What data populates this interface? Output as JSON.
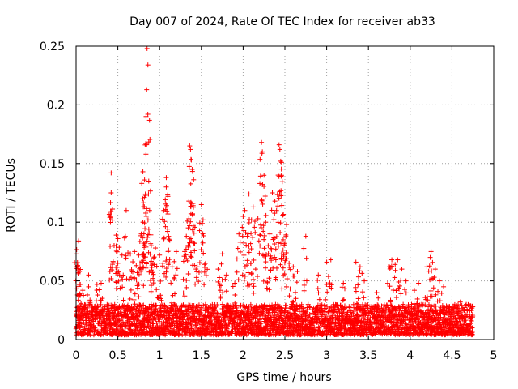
{
  "chart_data": {
    "type": "scatter",
    "title": "Day 007 of 2024, Rate Of TEC Index for receiver ab33",
    "xlabel": "GPS time / hours",
    "ylabel": "ROTI / TECUs",
    "xlim": [
      0,
      5
    ],
    "ylim": [
      0,
      0.25
    ],
    "x_ticks": [
      "0",
      "0.5",
      "1",
      "1.5",
      "2",
      "2.5",
      "3",
      "3.5",
      "4",
      "4.5",
      "5"
    ],
    "y_ticks": [
      "0",
      "0.05",
      "0.1",
      "0.15",
      "0.2",
      "0.25"
    ],
    "grid": true,
    "marker": "+",
    "series_color": "#ff0000",
    "baseline_band": {
      "x_range": [
        0.0,
        4.75
      ],
      "y_typical": [
        0.004,
        0.03
      ]
    },
    "series": [
      {
        "name": "ROTI",
        "points": [
          [
            0.0,
            0.073
          ],
          [
            0.02,
            0.062
          ],
          [
            0.03,
            0.084
          ],
          [
            0.04,
            0.058
          ],
          [
            0.05,
            0.047
          ],
          [
            0.08,
            0.042
          ],
          [
            0.15,
            0.055
          ],
          [
            0.25,
            0.047
          ],
          [
            0.3,
            0.048
          ],
          [
            0.42,
            0.142
          ],
          [
            0.42,
            0.125
          ],
          [
            0.42,
            0.109
          ],
          [
            0.48,
            0.089
          ],
          [
            0.5,
            0.086
          ],
          [
            0.5,
            0.065
          ],
          [
            0.55,
            0.072
          ],
          [
            0.6,
            0.11
          ],
          [
            0.65,
            0.073
          ],
          [
            0.7,
            0.075
          ],
          [
            0.72,
            0.063
          ],
          [
            0.75,
            0.072
          ],
          [
            0.78,
            0.09
          ],
          [
            0.8,
            0.1
          ],
          [
            0.8,
            0.12
          ],
          [
            0.8,
            0.143
          ],
          [
            0.82,
            0.136
          ],
          [
            0.83,
            0.124
          ],
          [
            0.84,
            0.105
          ],
          [
            0.85,
            0.248
          ],
          [
            0.86,
            0.234
          ],
          [
            0.87,
            0.135
          ],
          [
            0.88,
            0.11
          ],
          [
            0.9,
            0.08
          ],
          [
            0.92,
            0.065
          ],
          [
            0.95,
            0.078
          ],
          [
            1.0,
            0.072
          ],
          [
            1.05,
            0.11
          ],
          [
            1.08,
            0.138
          ],
          [
            1.08,
            0.13
          ],
          [
            1.1,
            0.107
          ],
          [
            1.1,
            0.122
          ],
          [
            1.15,
            0.062
          ],
          [
            1.2,
            0.075
          ],
          [
            1.3,
            0.075
          ],
          [
            1.32,
            0.088
          ],
          [
            1.35,
            0.118
          ],
          [
            1.36,
            0.165
          ],
          [
            1.37,
            0.162
          ],
          [
            1.38,
            0.153
          ],
          [
            1.39,
            0.145
          ],
          [
            1.4,
            0.116
          ],
          [
            1.42,
            0.082
          ],
          [
            1.45,
            0.062
          ],
          [
            1.5,
            0.115
          ],
          [
            1.52,
            0.102
          ],
          [
            1.55,
            0.065
          ],
          [
            1.7,
            0.06
          ],
          [
            1.75,
            0.073
          ],
          [
            1.8,
            0.055
          ],
          [
            1.9,
            0.048
          ],
          [
            1.95,
            0.09
          ],
          [
            2.0,
            0.105
          ],
          [
            2.02,
            0.11
          ],
          [
            2.05,
            0.088
          ],
          [
            2.07,
            0.124
          ],
          [
            2.1,
            0.102
          ],
          [
            2.12,
            0.113
          ],
          [
            2.15,
            0.06
          ],
          [
            2.2,
            0.133
          ],
          [
            2.22,
            0.168
          ],
          [
            2.23,
            0.16
          ],
          [
            2.25,
            0.14
          ],
          [
            2.27,
            0.1
          ],
          [
            2.3,
            0.08
          ],
          [
            2.32,
            0.09
          ],
          [
            2.35,
            0.125
          ],
          [
            2.38,
            0.118
          ],
          [
            2.4,
            0.11
          ],
          [
            2.43,
            0.166
          ],
          [
            2.44,
            0.162
          ],
          [
            2.45,
            0.152
          ],
          [
            2.46,
            0.14
          ],
          [
            2.48,
            0.085
          ],
          [
            2.5,
            0.082
          ],
          [
            2.52,
            0.098
          ],
          [
            2.55,
            0.065
          ],
          [
            2.6,
            0.062
          ],
          [
            2.65,
            0.058
          ],
          [
            2.75,
            0.088
          ],
          [
            2.9,
            0.055
          ],
          [
            3.0,
            0.066
          ],
          [
            3.05,
            0.068
          ],
          [
            3.2,
            0.048
          ],
          [
            3.35,
            0.066
          ],
          [
            3.4,
            0.062
          ],
          [
            3.45,
            0.05
          ],
          [
            3.6,
            0.04
          ],
          [
            3.75,
            0.062
          ],
          [
            3.78,
            0.068
          ],
          [
            3.82,
            0.064
          ],
          [
            3.85,
            0.068
          ],
          [
            3.9,
            0.06
          ],
          [
            3.95,
            0.05
          ],
          [
            4.05,
            0.042
          ],
          [
            4.1,
            0.048
          ],
          [
            4.2,
            0.062
          ],
          [
            4.24,
            0.07
          ],
          [
            4.25,
            0.075
          ],
          [
            4.3,
            0.06
          ],
          [
            4.35,
            0.05
          ],
          [
            4.4,
            0.045
          ],
          [
            4.6,
            0.032
          ],
          [
            4.75,
            0.028
          ]
        ]
      }
    ]
  }
}
